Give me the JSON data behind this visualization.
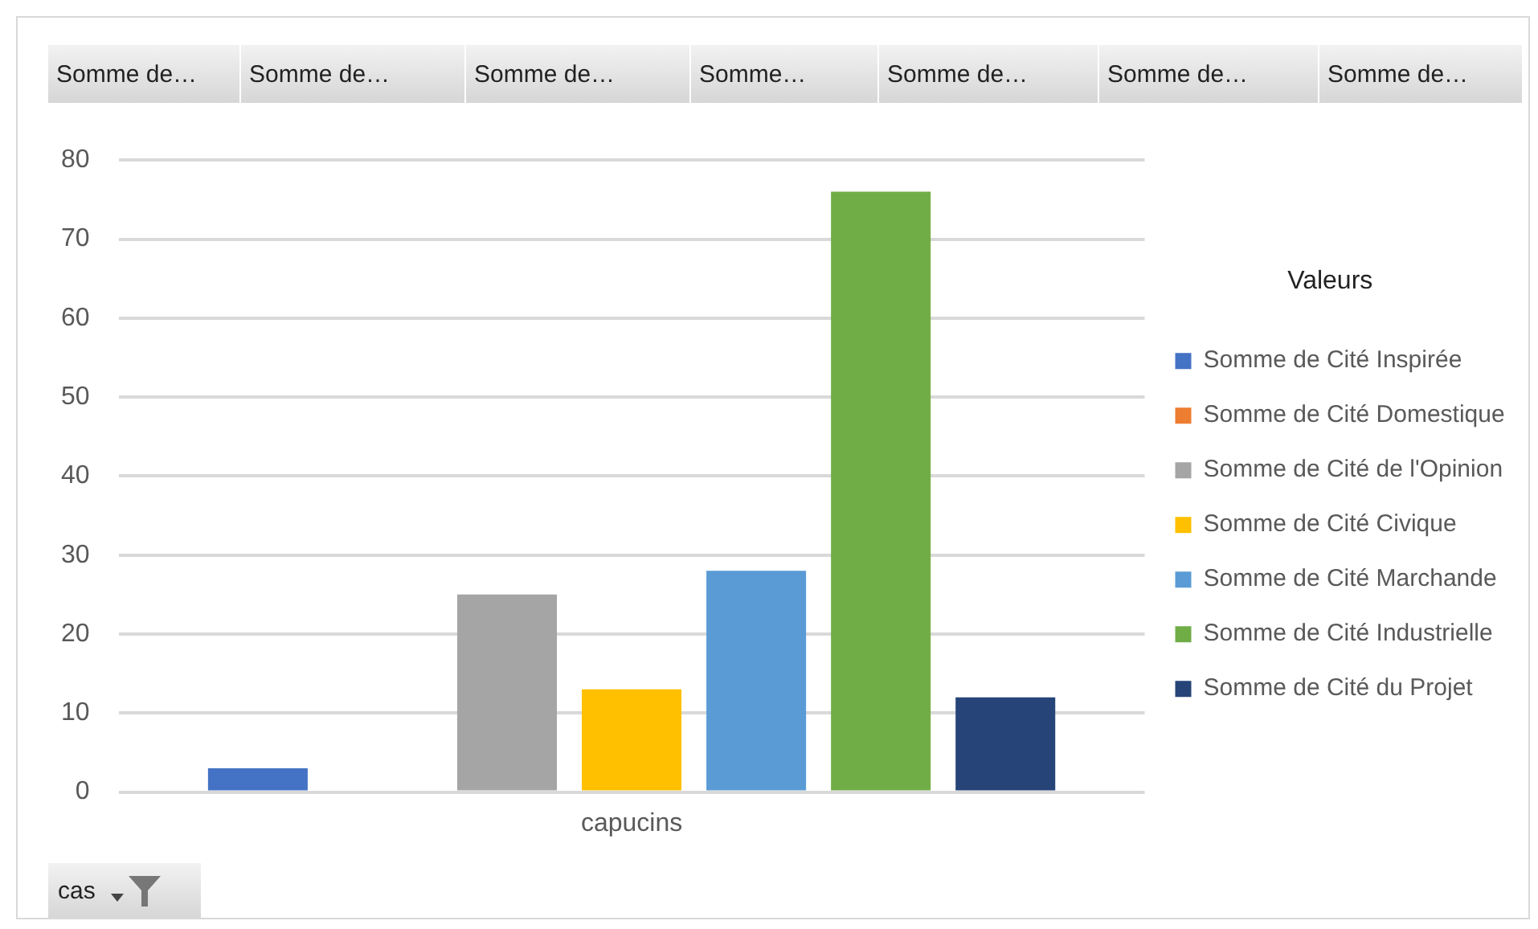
{
  "chart_data": {
    "type": "bar",
    "categories": [
      "capucins"
    ],
    "legend_title": "Valeurs",
    "legend": "right",
    "grid": "y",
    "ylim": [
      0,
      80
    ],
    "yticks": [
      0,
      10,
      20,
      30,
      40,
      50,
      60,
      70,
      80
    ],
    "annotations": [
      "Somme de…",
      "Somme de…",
      "Somme de…",
      "Somme…",
      "Somme de…",
      "Somme de…",
      "Somme de…",
      "cas"
    ],
    "series": [
      {
        "name": "Somme de Cité Inspirée",
        "color": "#4472c4",
        "values": [
          3
        ]
      },
      {
        "name": "Somme de Cité Domestique",
        "color": "#ed7d31",
        "values": [
          0
        ]
      },
      {
        "name": "Somme de Cité de l'Opinion",
        "color": "#a5a5a5",
        "values": [
          25
        ]
      },
      {
        "name": "Somme de Cité Civique",
        "color": "#ffc000",
        "values": [
          13
        ]
      },
      {
        "name": "Somme de Cité Marchande",
        "color": "#5b9bd5",
        "values": [
          28
        ]
      },
      {
        "name": "Somme de Cité Industrielle",
        "color": "#70ad47",
        "values": [
          76
        ]
      },
      {
        "name": "Somme de Cité du Projet",
        "color": "#264478",
        "values": [
          12
        ]
      }
    ]
  }
}
